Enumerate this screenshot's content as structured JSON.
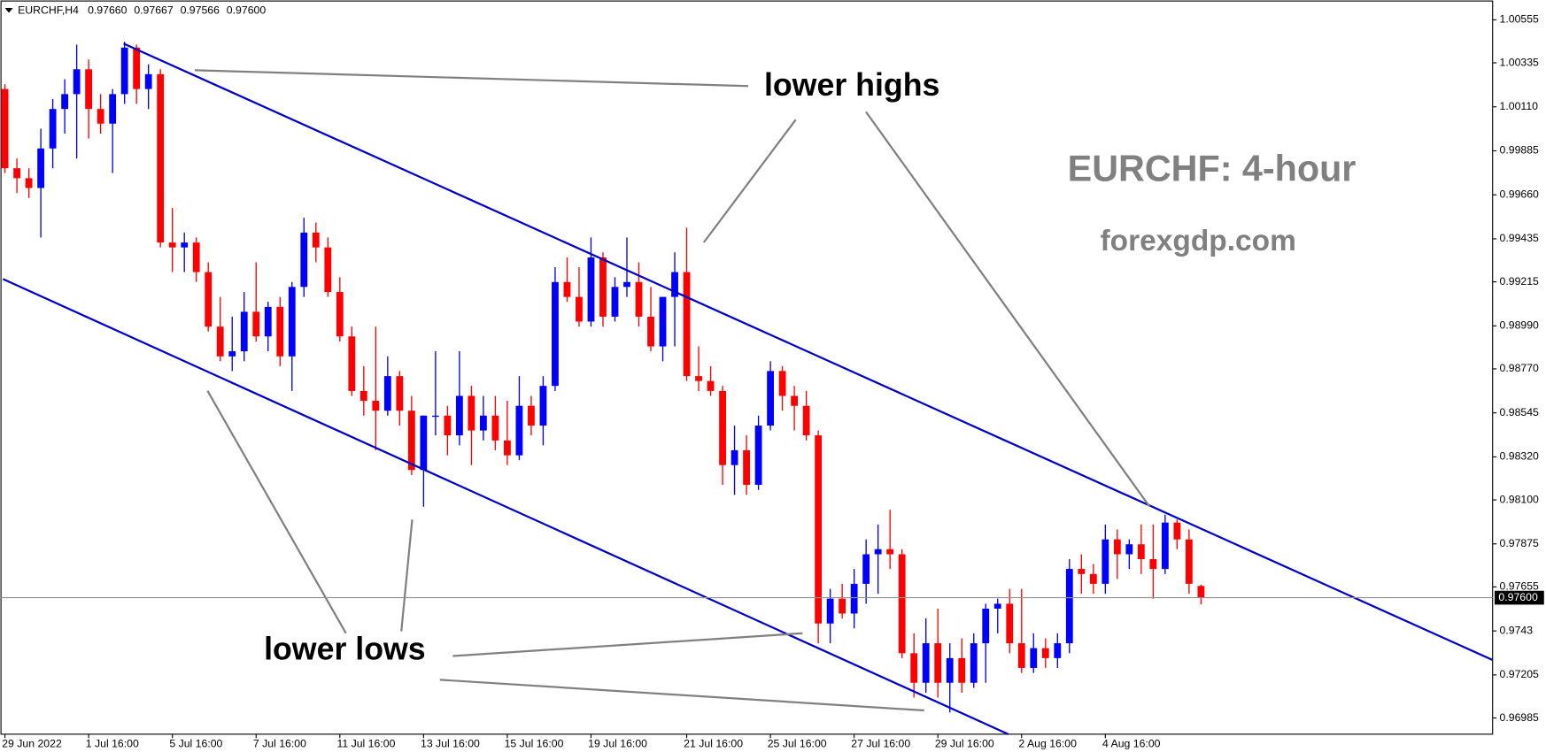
{
  "chart_data": {
    "type": "candlestick",
    "header": {
      "symbol": "EURCHF,H4",
      "value_labels": [
        "0.97660",
        "0.97667",
        "0.97566",
        "0.97600"
      ]
    },
    "title": "EURCHF: 4-hour",
    "source": "forexgdp.com",
    "annotations": [
      "lower highs",
      "lower lows"
    ],
    "colors": {
      "up": "#0000ff",
      "down": "#ff0000"
    },
    "open": [
      1.00201,
      0.99796,
      0.99745,
      0.99695,
      0.99897,
      1.00099,
      1.00175,
      1.00302,
      1.00099,
      1.00024,
      1.00175,
      1.00413,
      1.00201,
      1.00277,
      0.99416,
      0.99391,
      0.99416,
      0.99265,
      0.98986,
      0.98834,
      0.9886,
      0.99062,
      0.98936,
      0.99087,
      0.98834,
      0.99189,
      0.99467,
      0.99391,
      0.99163,
      0.98936,
      0.98657,
      0.98607,
      0.98556,
      0.98733,
      0.98556,
      0.98253,
      0.98531,
      0.98531,
      0.9843,
      0.98632,
      0.98455,
      0.98531,
      0.98404,
      0.98328,
      0.98581,
      0.9848,
      0.98683,
      0.99214,
      0.99138,
      0.99012,
      0.9934,
      0.99037,
      0.99189,
      0.99214,
      0.99037,
      0.98885,
      0.99138,
      0.99265,
      0.98733,
      0.98708,
      0.98657,
      0.98278,
      0.98354,
      0.98177,
      0.9848,
      0.98759,
      0.98632,
      0.98581,
      0.9843,
      0.97468,
      0.97595,
      0.97519,
      0.97671,
      0.97822,
      0.97848,
      0.97822,
      0.97316,
      0.97165,
      0.97367,
      0.97165,
      0.97291,
      0.97165,
      0.97367,
      0.97544,
      0.97569,
      0.97367,
      0.97241,
      0.97342,
      0.97291,
      0.97367,
      0.97747,
      0.97721,
      0.97671,
      0.97898,
      0.97822,
      0.97873,
      0.97797,
      0.97747,
      0.97984,
      0.97898,
      0.9766
    ],
    "high": [
      1.00226,
      0.99846,
      0.99796,
      0.99998,
      1.0015,
      1.00251,
      1.00428,
      1.00352,
      1.00175,
      1.00201,
      1.00443,
      1.00428,
      1.00327,
      1.00302,
      0.99593,
      0.99467,
      0.99442,
      0.99315,
      0.99138,
      0.99037,
      0.99163,
      0.99315,
      0.99113,
      0.99138,
      0.99214,
      0.99543,
      0.99518,
      0.99442,
      0.99239,
      0.98986,
      0.98784,
      0.98986,
      0.98834,
      0.98759,
      0.98632,
      0.98531,
      0.9886,
      0.98581,
      0.9886,
      0.98683,
      0.98632,
      0.98632,
      0.98607,
      0.98733,
      0.98632,
      0.98733,
      0.9929,
      0.9934,
      0.9929,
      0.99442,
      0.99366,
      0.99239,
      0.99442,
      0.99315,
      0.99189,
      0.99138,
      0.99366,
      0.99492,
      0.98885,
      0.98784,
      0.98683,
      0.9848,
      0.9843,
      0.98531,
      0.98809,
      0.98784,
      0.98683,
      0.98657,
      0.98455,
      0.97645,
      0.97671,
      0.97747,
      0.97898,
      0.97974,
      0.9805,
      0.97848,
      0.97418,
      0.97494,
      0.97544,
      0.97367,
      0.97392,
      0.97418,
      0.97569,
      0.97595,
      0.97645,
      0.97645,
      0.97418,
      0.97392,
      0.97418,
      0.97797,
      0.97822,
      0.97772,
      0.97974,
      0.97949,
      0.97898,
      0.97974,
      0.97974,
      0.98025,
      0.98,
      0.97949,
      0.97667
    ],
    "low": [
      0.99771,
      0.99669,
      0.99644,
      0.99442,
      0.99796,
      0.99973,
      0.99846,
      0.99948,
      0.99973,
      0.99771,
      1.00125,
      1.00125,
      1.00099,
      0.99391,
      0.99265,
      0.99265,
      0.99214,
      0.98961,
      0.98809,
      0.98759,
      0.98809,
      0.9891,
      0.9886,
      0.98784,
      0.98657,
      0.99138,
      0.99315,
      0.99138,
      0.9891,
      0.98632,
      0.98531,
      0.98354,
      0.98531,
      0.9848,
      0.98227,
      0.98065,
      0.9843,
      0.98328,
      0.98379,
      0.98278,
      0.98404,
      0.98354,
      0.98278,
      0.98303,
      0.9843,
      0.98379,
      0.98657,
      0.99113,
      0.98986,
      0.98986,
      0.98986,
      0.99012,
      0.99138,
      0.98986,
      0.9886,
      0.98809,
      0.98885,
      0.98708,
      0.98657,
      0.98632,
      0.98177,
      0.98126,
      0.98126,
      0.98151,
      0.98455,
      0.98556,
      0.98455,
      0.98404,
      0.97367,
      0.97367,
      0.97494,
      0.97443,
      0.97569,
      0.9762,
      0.97747,
      0.97291,
      0.97089,
      0.97114,
      0.97089,
      0.97013,
      0.97114,
      0.97139,
      0.97165,
      0.97418,
      0.97316,
      0.97215,
      0.97215,
      0.97241,
      0.97241,
      0.97316,
      0.9762,
      0.9762,
      0.9762,
      0.97696,
      0.97747,
      0.97721,
      0.97595,
      0.97721,
      0.97848,
      0.9762,
      0.97566
    ],
    "close": [
      0.99796,
      0.99745,
      0.99695,
      0.99897,
      1.00099,
      1.00175,
      1.00302,
      1.00099,
      1.00024,
      1.00175,
      1.00413,
      1.00201,
      1.00277,
      0.99416,
      0.99391,
      0.99416,
      0.99265,
      0.98986,
      0.98834,
      0.9886,
      0.99062,
      0.98936,
      0.99087,
      0.98834,
      0.99189,
      0.99467,
      0.99391,
      0.99163,
      0.98936,
      0.98657,
      0.98607,
      0.98556,
      0.98733,
      0.98556,
      0.98253,
      0.98531,
      0.98531,
      0.9843,
      0.98632,
      0.98455,
      0.98531,
      0.98404,
      0.98328,
      0.98581,
      0.9848,
      0.98683,
      0.99214,
      0.99138,
      0.99012,
      0.9934,
      0.99037,
      0.99189,
      0.99214,
      0.99037,
      0.98885,
      0.99138,
      0.99265,
      0.98733,
      0.98708,
      0.98657,
      0.98278,
      0.98354,
      0.98177,
      0.9848,
      0.98759,
      0.98632,
      0.98581,
      0.9843,
      0.97468,
      0.97595,
      0.97519,
      0.97671,
      0.97822,
      0.97848,
      0.97822,
      0.97316,
      0.97165,
      0.97367,
      0.97165,
      0.97291,
      0.97165,
      0.97367,
      0.97544,
      0.97569,
      0.97367,
      0.97241,
      0.97342,
      0.97291,
      0.97367,
      0.97747,
      0.97721,
      0.97671,
      0.97898,
      0.97822,
      0.97873,
      0.97797,
      0.97747,
      0.97984,
      0.97898,
      0.97671,
      0.976
    ],
    "price_line": {
      "value": 0.976,
      "label": "0.97600"
    },
    "ylim": [
      0.96902,
      1.00636
    ],
    "yticks": [
      1.00555,
      1.00335,
      {
        "value": 1.0011,
        "label": "1.00110"
      },
      0.99885,
      {
        "value": 0.9966,
        "label": "0.99660"
      },
      0.99435,
      0.99215,
      {
        "value": 0.9899,
        "label": "0.98990"
      },
      {
        "value": 0.9877,
        "label": "0.98770"
      },
      0.98545,
      {
        "value": 0.9832,
        "label": "0.98320"
      },
      {
        "value": 0.981,
        "label": "0.98100"
      },
      0.97875,
      0.97655,
      0.9743,
      0.97205,
      0.96985
    ],
    "xticks": [
      {
        "value": 0,
        "label": "29 Jun 2022"
      },
      {
        "value": 7,
        "label": "1 Jul 16:00"
      },
      {
        "value": 14,
        "label": "5 Jul 16:00"
      },
      {
        "value": 21,
        "label": "7 Jul 16:00"
      },
      {
        "value": 28,
        "label": "11 Jul 16:00"
      },
      {
        "value": 35,
        "label": "13 Jul 16:00"
      },
      {
        "value": 42,
        "label": "15 Jul 16:00"
      },
      {
        "value": 49,
        "label": "19 Jul 16:00"
      },
      {
        "value": 57,
        "label": "21 Jul 16:00"
      },
      {
        "value": 64,
        "label": "25 Jul 16:00"
      },
      {
        "value": 71,
        "label": "27 Jul 16:00"
      },
      {
        "value": 78,
        "label": "29 Jul 16:00"
      },
      {
        "value": 85,
        "label": "2 Aug 16:00"
      },
      {
        "value": 92,
        "label": "4 Aug 16:00"
      }
    ]
  }
}
